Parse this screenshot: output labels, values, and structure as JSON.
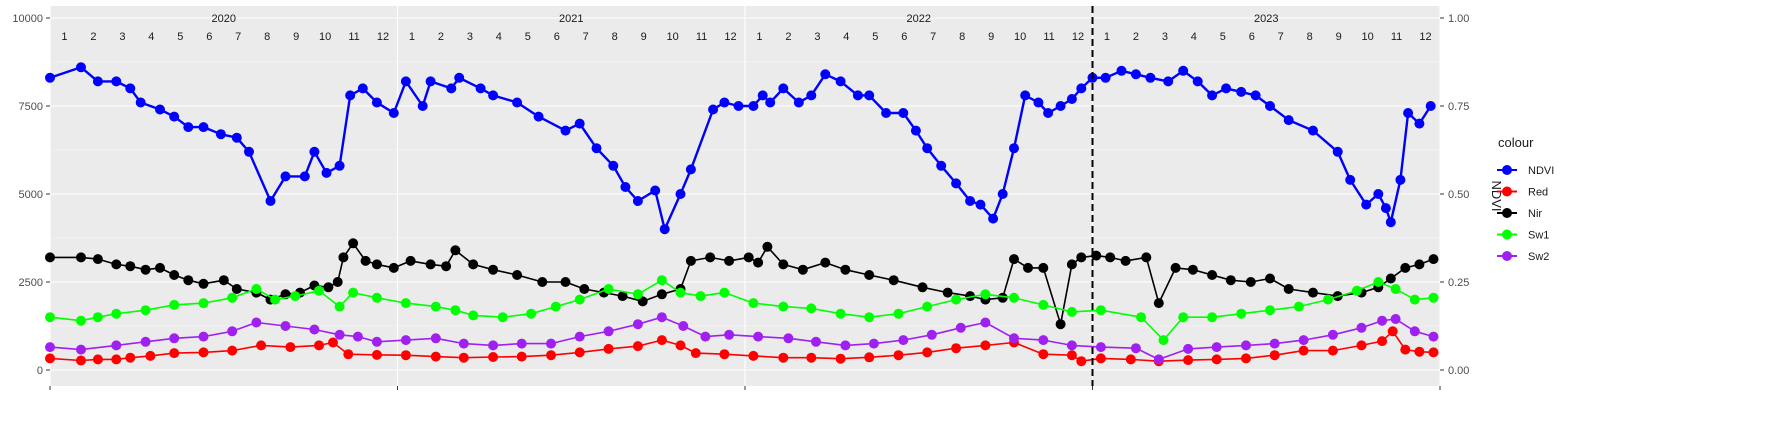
{
  "chart_data": {
    "type": "line",
    "title": "",
    "xlabel": "",
    "ylabel": "",
    "y2label": "NDVI",
    "ylim": [
      0,
      10000
    ],
    "y2lim": [
      0,
      1
    ],
    "grid": true,
    "legend_position": "right",
    "legend_title": "colour",
    "background": "#ebebeb",
    "y_ticks": [
      0,
      2500,
      5000,
      7500,
      10000
    ],
    "y2_ticks": [
      "0.00",
      "0.25",
      "0.50",
      "0.75",
      "1.00"
    ],
    "years": [
      "2020",
      "2021",
      "2022",
      "2023"
    ],
    "months": [
      "1",
      "2",
      "3",
      "4",
      "5",
      "6",
      "7",
      "8",
      "9",
      "10",
      "11",
      "12"
    ],
    "vline_date": "2023-01-01",
    "series": [
      {
        "name": "NDVI",
        "color": "#0000ff",
        "axis": "right",
        "x": [
          "2020-01-01",
          "2020-02-03",
          "2020-02-20",
          "2020-03-10",
          "2020-03-25",
          "2020-04-05",
          "2020-04-25",
          "2020-05-10",
          "2020-05-25",
          "2020-06-10",
          "2020-06-28",
          "2020-07-15",
          "2020-07-28",
          "2020-08-20",
          "2020-09-05",
          "2020-09-25",
          "2020-10-05",
          "2020-10-18",
          "2020-11-01",
          "2020-11-12",
          "2020-11-25",
          "2020-12-10",
          "2020-12-28",
          "2021-01-10",
          "2021-01-28",
          "2021-02-05",
          "2021-02-25",
          "2021-03-05",
          "2021-03-28",
          "2021-04-10",
          "2021-05-05",
          "2021-05-28",
          "2021-06-25",
          "2021-07-10",
          "2021-07-28",
          "2021-08-15",
          "2021-08-28",
          "2021-09-10",
          "2021-09-28",
          "2021-10-08",
          "2021-10-25",
          "2021-11-05",
          "2021-11-28",
          "2021-12-10",
          "2021-12-25",
          "2022-01-10",
          "2022-01-20",
          "2022-01-28",
          "2022-02-10",
          "2022-02-25",
          "2022-03-10",
          "2022-03-25",
          "2022-04-10",
          "2022-04-28",
          "2022-05-10",
          "2022-05-28",
          "2022-06-15",
          "2022-06-28",
          "2022-07-10",
          "2022-07-25",
          "2022-08-10",
          "2022-08-25",
          "2022-09-05",
          "2022-09-18",
          "2022-09-28",
          "2022-10-10",
          "2022-10-22",
          "2022-11-05",
          "2022-11-15",
          "2022-11-28",
          "2022-12-10",
          "2022-12-20",
          "2023-01-01",
          "2023-01-15",
          "2023-02-01",
          "2023-02-15",
          "2023-03-01",
          "2023-03-20",
          "2023-04-05",
          "2023-04-20",
          "2023-05-05",
          "2023-05-20",
          "2023-06-05",
          "2023-06-20",
          "2023-07-05",
          "2023-07-25",
          "2023-08-20",
          "2023-09-15",
          "2023-09-28",
          "2023-10-15",
          "2023-10-28",
          "2023-11-05",
          "2023-11-10",
          "2023-11-20",
          "2023-11-28",
          "2023-12-10",
          "2023-12-22"
        ],
        "values": [
          0.83,
          0.86,
          0.82,
          0.82,
          0.8,
          0.76,
          0.74,
          0.72,
          0.69,
          0.69,
          0.67,
          0.66,
          0.62,
          0.48,
          0.55,
          0.55,
          0.62,
          0.56,
          0.58,
          0.78,
          0.8,
          0.76,
          0.73,
          0.82,
          0.75,
          0.82,
          0.8,
          0.83,
          0.8,
          0.78,
          0.76,
          0.72,
          0.68,
          0.7,
          0.63,
          0.58,
          0.52,
          0.48,
          0.51,
          0.4,
          0.5,
          0.57,
          0.74,
          0.76,
          0.75,
          0.75,
          0.78,
          0.76,
          0.8,
          0.76,
          0.78,
          0.84,
          0.82,
          0.78,
          0.78,
          0.73,
          0.73,
          0.68,
          0.63,
          0.58,
          0.53,
          0.48,
          0.47,
          0.43,
          0.5,
          0.63,
          0.78,
          0.76,
          0.73,
          0.75,
          0.77,
          0.8,
          0.83,
          0.83,
          0.85,
          0.84,
          0.83,
          0.82,
          0.85,
          0.82,
          0.78,
          0.8,
          0.79,
          0.78,
          0.75,
          0.71,
          0.68,
          0.62,
          0.54,
          0.47,
          0.5,
          0.46,
          0.42,
          0.54,
          0.73,
          0.7,
          0.75
        ]
      },
      {
        "name": "Red",
        "color": "#ff0000",
        "axis": "left",
        "x": [
          "2020-01-01",
          "2020-02-03",
          "2020-02-20",
          "2020-03-10",
          "2020-03-25",
          "2020-04-15",
          "2020-05-10",
          "2020-06-10",
          "2020-07-10",
          "2020-08-10",
          "2020-09-10",
          "2020-10-10",
          "2020-10-25",
          "2020-11-10",
          "2020-12-10",
          "2021-01-10",
          "2021-02-10",
          "2021-03-10",
          "2021-04-10",
          "2021-05-10",
          "2021-06-10",
          "2021-07-10",
          "2021-08-10",
          "2021-09-10",
          "2021-10-05",
          "2021-10-25",
          "2021-11-10",
          "2021-12-10",
          "2022-01-10",
          "2022-02-10",
          "2022-03-10",
          "2022-04-10",
          "2022-05-10",
          "2022-06-10",
          "2022-07-10",
          "2022-08-10",
          "2022-09-10",
          "2022-10-10",
          "2022-11-10",
          "2022-12-10",
          "2022-12-20",
          "2023-01-10",
          "2023-02-10",
          "2023-03-10",
          "2023-04-10",
          "2023-05-10",
          "2023-06-10",
          "2023-07-10",
          "2023-08-10",
          "2023-09-10",
          "2023-10-10",
          "2023-11-01",
          "2023-11-12",
          "2023-11-25",
          "2023-12-10",
          "2023-12-25"
        ],
        "values": [
          330,
          270,
          300,
          300,
          350,
          400,
          480,
          500,
          550,
          700,
          650,
          700,
          780,
          450,
          430,
          420,
          380,
          350,
          370,
          380,
          420,
          500,
          600,
          680,
          850,
          700,
          480,
          450,
          400,
          350,
          350,
          320,
          360,
          420,
          500,
          620,
          700,
          780,
          450,
          420,
          250,
          330,
          300,
          250,
          280,
          300,
          330,
          420,
          550,
          550,
          700,
          820,
          1100,
          580,
          520,
          500
        ]
      },
      {
        "name": "Nir",
        "color": "#000000",
        "axis": "left",
        "x": [
          "2020-01-01",
          "2020-02-03",
          "2020-02-20",
          "2020-03-10",
          "2020-03-25",
          "2020-04-10",
          "2020-04-25",
          "2020-05-10",
          "2020-05-25",
          "2020-06-10",
          "2020-07-01",
          "2020-07-15",
          "2020-08-05",
          "2020-08-20",
          "2020-09-05",
          "2020-09-20",
          "2020-10-05",
          "2020-10-20",
          "2020-10-30",
          "2020-11-05",
          "2020-11-15",
          "2020-11-28",
          "2020-12-10",
          "2020-12-28",
          "2021-01-15",
          "2021-02-05",
          "2021-02-20",
          "2021-03-01",
          "2021-03-20",
          "2021-04-10",
          "2021-05-05",
          "2021-06-01",
          "2021-06-25",
          "2021-07-15",
          "2021-08-05",
          "2021-08-25",
          "2021-09-15",
          "2021-10-05",
          "2021-10-25",
          "2021-11-05",
          "2021-11-25",
          "2021-12-15",
          "2022-01-05",
          "2022-01-15",
          "2022-01-25",
          "2022-02-10",
          "2022-03-01",
          "2022-03-25",
          "2022-04-15",
          "2022-05-10",
          "2022-06-05",
          "2022-07-05",
          "2022-08-01",
          "2022-08-25",
          "2022-09-10",
          "2022-09-28",
          "2022-10-10",
          "2022-10-25",
          "2022-11-10",
          "2022-11-28",
          "2022-12-10",
          "2022-12-20",
          "2023-01-05",
          "2023-01-20",
          "2023-02-05",
          "2023-02-25",
          "2023-03-10",
          "2023-03-28",
          "2023-04-15",
          "2023-05-05",
          "2023-05-25",
          "2023-06-15",
          "2023-07-05",
          "2023-07-25",
          "2023-08-20",
          "2023-09-15",
          "2023-10-10",
          "2023-10-28",
          "2023-11-10",
          "2023-11-25",
          "2023-12-10",
          "2023-12-25"
        ],
        "values": [
          3200,
          3200,
          3150,
          3000,
          2950,
          2850,
          2900,
          2700,
          2550,
          2450,
          2550,
          2300,
          2200,
          2000,
          2150,
          2200,
          2400,
          2350,
          2500,
          3200,
          3600,
          3100,
          3000,
          2900,
          3100,
          3000,
          2950,
          3400,
          3000,
          2850,
          2700,
          2500,
          2500,
          2300,
          2200,
          2100,
          1950,
          2150,
          2300,
          3100,
          3200,
          3100,
          3200,
          3050,
          3500,
          3000,
          2850,
          3050,
          2850,
          2700,
          2550,
          2350,
          2200,
          2100,
          2000,
          2050,
          3150,
          2900,
          2900,
          1300,
          3000,
          3200,
          3250,
          3200,
          3100,
          3200,
          1900,
          2900,
          2850,
          2700,
          2550,
          2500,
          2600,
          2300,
          2200,
          2100,
          2200,
          2350,
          2600,
          2900,
          3000,
          3150
        ]
      },
      {
        "name": "Sw1",
        "color": "#00ff00",
        "axis": "left",
        "x": [
          "2020-01-01",
          "2020-02-03",
          "2020-02-20",
          "2020-03-10",
          "2020-04-10",
          "2020-05-10",
          "2020-06-10",
          "2020-07-10",
          "2020-08-05",
          "2020-08-25",
          "2020-09-15",
          "2020-10-10",
          "2020-11-01",
          "2020-11-15",
          "2020-12-10",
          "2021-01-10",
          "2021-02-10",
          "2021-03-01",
          "2021-03-20",
          "2021-04-20",
          "2021-05-20",
          "2021-06-15",
          "2021-07-10",
          "2021-08-10",
          "2021-09-10",
          "2021-10-05",
          "2021-10-25",
          "2021-11-15",
          "2021-12-10",
          "2022-01-10",
          "2022-02-10",
          "2022-03-10",
          "2022-04-10",
          "2022-05-10",
          "2022-06-10",
          "2022-07-10",
          "2022-08-10",
          "2022-09-10",
          "2022-10-10",
          "2022-11-10",
          "2022-12-10",
          "2023-01-10",
          "2023-02-20",
          "2023-03-15",
          "2023-04-05",
          "2023-05-05",
          "2023-06-05",
          "2023-07-05",
          "2023-08-05",
          "2023-09-05",
          "2023-10-05",
          "2023-10-28",
          "2023-11-15",
          "2023-12-05",
          "2023-12-25"
        ],
        "values": [
          1500,
          1400,
          1500,
          1600,
          1700,
          1850,
          1900,
          2050,
          2300,
          2000,
          2100,
          2250,
          1800,
          2200,
          2050,
          1900,
          1800,
          1700,
          1550,
          1500,
          1600,
          1800,
          2000,
          2300,
          2150,
          2550,
          2200,
          2100,
          2200,
          1900,
          1800,
          1750,
          1600,
          1500,
          1600,
          1800,
          2000,
          2150,
          2050,
          1850,
          1650,
          1700,
          1500,
          850,
          1500,
          1500,
          1600,
          1700,
          1800,
          2000,
          2250,
          2500,
          2300,
          2000,
          2050
        ]
      },
      {
        "name": "Sw2",
        "color": "#a020f0",
        "axis": "left",
        "x": [
          "2020-01-01",
          "2020-02-03",
          "2020-03-10",
          "2020-04-10",
          "2020-05-10",
          "2020-06-10",
          "2020-07-10",
          "2020-08-05",
          "2020-09-05",
          "2020-10-05",
          "2020-11-01",
          "2020-11-20",
          "2020-12-10",
          "2021-01-10",
          "2021-02-10",
          "2021-03-10",
          "2021-04-10",
          "2021-05-10",
          "2021-06-10",
          "2021-07-10",
          "2021-08-10",
          "2021-09-10",
          "2021-10-05",
          "2021-10-28",
          "2021-11-20",
          "2021-12-15",
          "2022-01-15",
          "2022-02-15",
          "2022-03-15",
          "2022-04-15",
          "2022-05-15",
          "2022-06-15",
          "2022-07-15",
          "2022-08-15",
          "2022-09-10",
          "2022-10-10",
          "2022-11-10",
          "2022-12-10",
          "2023-01-10",
          "2023-02-15",
          "2023-03-10",
          "2023-04-10",
          "2023-05-10",
          "2023-06-10",
          "2023-07-10",
          "2023-08-10",
          "2023-09-10",
          "2023-10-10",
          "2023-11-01",
          "2023-11-15",
          "2023-12-05",
          "2023-12-25"
        ],
        "values": [
          650,
          580,
          700,
          800,
          900,
          950,
          1100,
          1350,
          1250,
          1150,
          1000,
          950,
          800,
          850,
          900,
          750,
          700,
          750,
          750,
          950,
          1100,
          1300,
          1500,
          1250,
          950,
          1000,
          950,
          900,
          800,
          700,
          750,
          850,
          1000,
          1200,
          1350,
          900,
          850,
          700,
          650,
          620,
          300,
          600,
          650,
          700,
          750,
          850,
          1000,
          1200,
          1400,
          1450,
          1100,
          950
        ]
      }
    ]
  }
}
